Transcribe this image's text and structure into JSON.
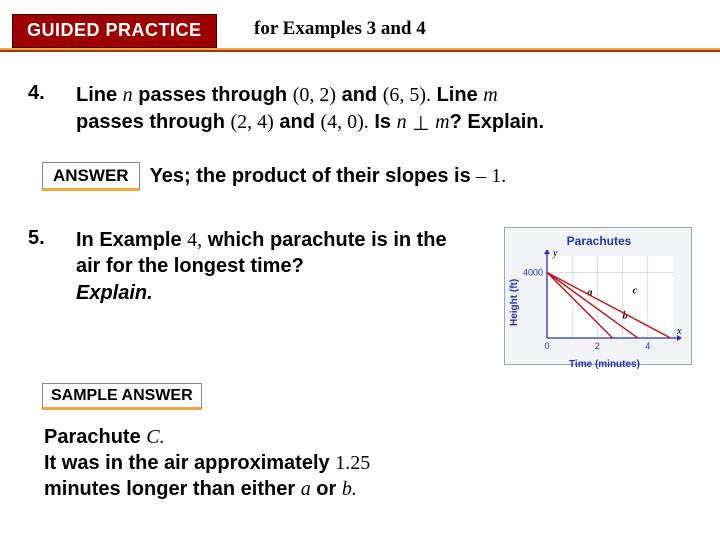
{
  "header": {
    "badge": "GUIDED PRACTICE",
    "subtitle": "for Examples 3 and 4",
    "accent_top_color": "#f2a93c",
    "accent_bottom_color": "#a03318",
    "badge_bg": "#9d0000"
  },
  "q4": {
    "number": "4.",
    "seg1": "Line ",
    "var_n": "n",
    "seg2": " passes through ",
    "pt1": "(0, 2)",
    "seg3": " and ",
    "pt2": "(6, 5).",
    "seg4": " Line ",
    "var_m": "m",
    "seg5": " passes through ",
    "pt3": "(2, 4)",
    "seg6": " and ",
    "pt4": "(4, 0).",
    "seg7": " Is ",
    "perp": "⊥",
    "seg8": "? Explain."
  },
  "answer4": {
    "label": "ANSWER",
    "pre": "Yes; the product of their slopes is ",
    "val": "– 1."
  },
  "q5": {
    "number": "5.",
    "seg1": "In Example ",
    "ex": "4,",
    "seg2": " which parachute is in the air for the longest time? ",
    "emph": "Explain."
  },
  "chart": {
    "title": "Parachutes",
    "ylabel": "Height (ft)",
    "xlabel": "Time (minutes)",
    "y_tick_label": "4000",
    "x_ticks": [
      "0",
      "2",
      "4"
    ],
    "ylim": [
      0,
      5000
    ],
    "xlim": [
      0,
      5
    ],
    "series": [
      {
        "name": "a",
        "color": "#c01818",
        "x1": 0,
        "y1": 4000,
        "x2": 2.6,
        "y2": 0,
        "label_x": 1.6,
        "label_y": 2600
      },
      {
        "name": "b",
        "color": "#c01818",
        "x1": 0,
        "y1": 4000,
        "x2": 3.6,
        "y2": 0,
        "label_x": 3.0,
        "label_y": 1200
      },
      {
        "name": "c",
        "color": "#c01818",
        "x1": 0,
        "y1": 4000,
        "x2": 4.9,
        "y2": 0,
        "label_x": 3.4,
        "label_y": 2700
      }
    ],
    "axis_color": "#2030c0",
    "grid_color": "#c4cad6",
    "line_width": 1.5,
    "plot_bg": "#ffffff",
    "y_axis_letter": "y",
    "x_axis_letter": "x"
  },
  "sample": {
    "label": "SAMPLE ANSWER"
  },
  "final": {
    "l1a": "Parachute ",
    "l1b": "C.",
    "l2a": "It was in the air approximately ",
    "l2b": "1.25",
    "l3a": "minutes longer than either ",
    "l3b": "a",
    "l3c": " or ",
    "l3d": "b."
  }
}
